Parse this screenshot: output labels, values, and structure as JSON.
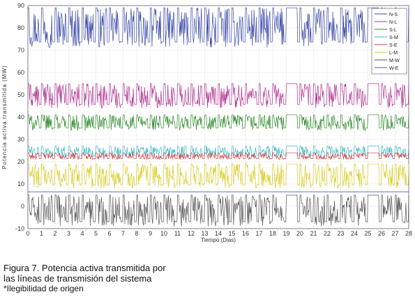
{
  "chart_data": {
    "type": "line",
    "xlabel": "Tiempo (Dias)",
    "ylabel": "Potencia activa transmitida (MW)",
    "xlim": [
      0,
      28
    ],
    "ylim": [
      -10,
      90
    ],
    "x_ticks": [
      "0",
      "1",
      "2",
      "3",
      "4",
      "5",
      "6",
      "7",
      "8",
      "9",
      "10",
      "11",
      "12",
      "13",
      "14",
      "15",
      "16",
      "17",
      "18",
      "19",
      "20",
      "21",
      "22",
      "23",
      "24",
      "25",
      "26",
      "27",
      "28"
    ],
    "y_ticks": [
      "-10",
      "0",
      "10",
      "20",
      "30",
      "40",
      "50",
      "60",
      "70",
      "80",
      "90"
    ],
    "grid": true,
    "legend_position": "top-right",
    "series": [
      {
        "name": "N-S",
        "color": "#3a4aa8",
        "baseline": 89,
        "min": 71,
        "style": "bands"
      },
      {
        "name": "N-L",
        "color": "#b0308f",
        "baseline": 55,
        "min": 44,
        "style": "bands"
      },
      {
        "name": "S-L",
        "color": "#2e8a2a",
        "baseline": 41,
        "min": 34,
        "style": "bands"
      },
      {
        "name": "S-M",
        "color": "#3bb8c6",
        "baseline": 27,
        "min": 22,
        "style": "bands"
      },
      {
        "name": "S-E",
        "color": "#d43c3c",
        "baseline": 24,
        "min": 21,
        "style": "bands"
      },
      {
        "name": "L-M",
        "color": "#d8cc25",
        "baseline": 19,
        "min": 8,
        "style": "bands"
      },
      {
        "name": "M-W",
        "color": "#555555",
        "baseline": 5,
        "min": -9,
        "style": "bands"
      },
      {
        "name": "W-E",
        "color": "#4a5ab8",
        "baseline": 6.5,
        "min": 6.5,
        "style": "flat"
      }
    ]
  },
  "caption": {
    "line1": "Figura 7. Potencia activa transmitida por",
    "line2": "las líneas de transmisión del sistema",
    "note": "*Ilegibilidad de origen"
  }
}
